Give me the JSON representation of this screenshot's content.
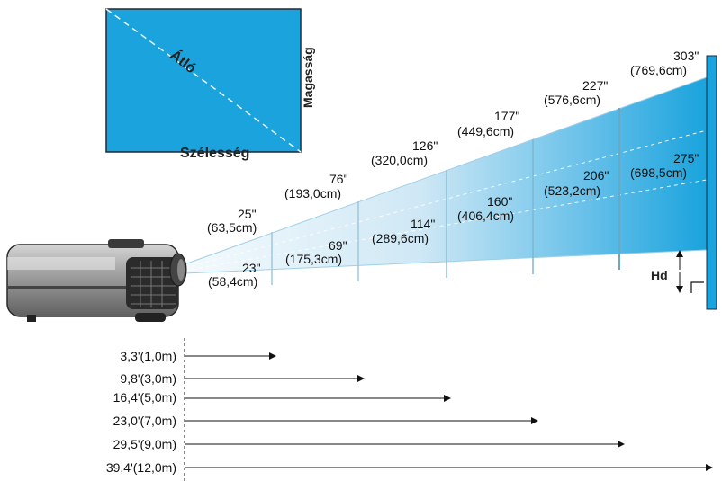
{
  "screen_diagram": {
    "diagonal_label": "Átló",
    "height_label": "Magasság",
    "width_label": "Szélesség"
  },
  "hd_label": "Hd",
  "screens": [
    {
      "diag_in": "25\"",
      "diag_cm": "(63,5cm)",
      "width_in": "23\"",
      "width_cm": "(58,4cm)"
    },
    {
      "diag_in": "76\"",
      "diag_cm": "(193,0cm)",
      "width_in": "69\"",
      "width_cm": "(175,3cm)"
    },
    {
      "diag_in": "126\"",
      "diag_cm": "(320,0cm)",
      "width_in": "114\"",
      "width_cm": "(289,6cm)"
    },
    {
      "diag_in": "177\"",
      "diag_cm": "(449,6cm)",
      "width_in": "160\"",
      "width_cm": "(406,4cm)"
    },
    {
      "diag_in": "227\"",
      "diag_cm": "(576,6cm)",
      "width_in": "206\"",
      "width_cm": "(523,2cm)"
    },
    {
      "diag_in": "303\"",
      "diag_cm": "(769,6cm)",
      "width_in": "275\"",
      "width_cm": "(698,5cm)"
    }
  ],
  "distances": [
    {
      "label": "3,3'(1,0m)"
    },
    {
      "label": "9,8'(3,0m)"
    },
    {
      "label": "16,4'(5,0m)"
    },
    {
      "label": "23,0'(7,0m)"
    },
    {
      "label": "29,5'(9,0m)"
    },
    {
      "label": "39,4'(12,0m)"
    }
  ],
  "colors": {
    "screen_fill": "#1aa3dd",
    "screen_border": "#1c2a3a",
    "beam_light": "#eef7fc",
    "beam_dark": "#1aa3dd",
    "projector_body": "#8c8c8c"
  }
}
